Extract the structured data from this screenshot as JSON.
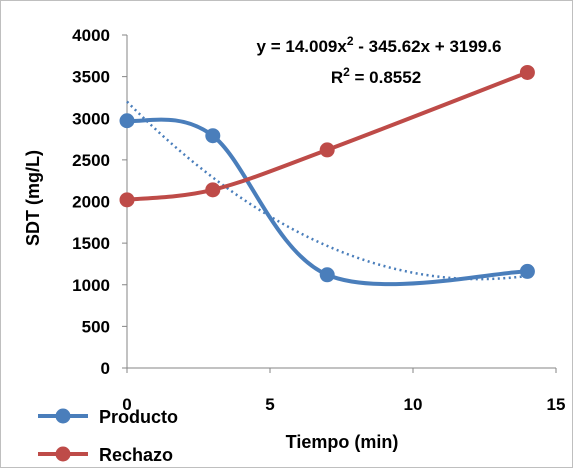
{
  "chart_data": {
    "type": "line",
    "xlabel": "Tiempo (min)",
    "ylabel": "SDT (mg/L)",
    "xlim": [
      0,
      15
    ],
    "ylim": [
      0,
      4000
    ],
    "xticks": [
      "0",
      "5",
      "10",
      "15"
    ],
    "yticks": [
      "0",
      "500",
      "1000",
      "1500",
      "2000",
      "2500",
      "3000",
      "3500",
      "4000"
    ],
    "grid": false,
    "legend_position": "bottom-left",
    "series": [
      {
        "name": "Producto",
        "color": "#4a7ebb",
        "x": [
          0,
          3,
          7,
          14
        ],
        "y": [
          2970,
          2790,
          1120,
          1160
        ],
        "smooth": true,
        "marker": "circle"
      },
      {
        "name": "Rechazo",
        "color": "#be4b48",
        "x": [
          0,
          3,
          7,
          14
        ],
        "y": [
          2020,
          2140,
          2620,
          3550
        ],
        "smooth": true,
        "marker": "circle"
      }
    ],
    "trendline": {
      "series": "Producto",
      "type": "polynomial",
      "coefficients": [
        14.009,
        -345.62,
        3199.6
      ],
      "color": "#4a7ebb",
      "style": "dotted",
      "x_range": [
        0,
        14
      ]
    },
    "annotations": {
      "equation": {
        "prefix": "y = 14.009x",
        "sup": "2",
        "suffix": " - 345.62x + 3199.6"
      },
      "r_squared": {
        "prefix": "R",
        "sup": "2",
        "suffix": " = 0.8552"
      }
    }
  }
}
